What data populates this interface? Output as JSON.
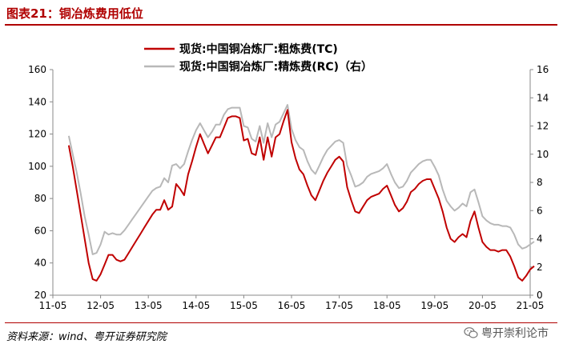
{
  "title": "图表21：铜冶炼费用低位",
  "source": "资料来源：wind、粤开证券研究院",
  "watermark": "粤开崇利论市",
  "chart_data": {
    "type": "line",
    "legend_position": "top",
    "grid": false,
    "x_ticks": [
      "11-05",
      "12-05",
      "13-05",
      "14-05",
      "15-05",
      "16-05",
      "17-05",
      "18-05",
      "19-05",
      "20-05",
      "21-05"
    ],
    "x_range": [
      "2011-05",
      "2021-05"
    ],
    "y_left": {
      "range": [
        20,
        160
      ],
      "ticks": [
        20,
        40,
        60,
        80,
        100,
        120,
        140,
        160
      ]
    },
    "y_right": {
      "range": [
        0,
        16
      ],
      "ticks": [
        0,
        2,
        4,
        6,
        8,
        10,
        12,
        14,
        16
      ]
    },
    "series": [
      {
        "name": "现货:中国铜冶炼厂:粗炼费(TC)",
        "axis": "left",
        "color": "#c00000",
        "points": [
          [
            "2011-09",
            113
          ],
          [
            "2011-10",
            100
          ],
          [
            "2011-11",
            85
          ],
          [
            "2011-12",
            70
          ],
          [
            "2012-01",
            55
          ],
          [
            "2012-02",
            40
          ],
          [
            "2012-03",
            30
          ],
          [
            "2012-04",
            29
          ],
          [
            "2012-05",
            33
          ],
          [
            "2012-06",
            39
          ],
          [
            "2012-07",
            45
          ],
          [
            "2012-08",
            45
          ],
          [
            "2012-09",
            42
          ],
          [
            "2012-10",
            41
          ],
          [
            "2012-11",
            42
          ],
          [
            "2012-12",
            46
          ],
          [
            "2013-01",
            50
          ],
          [
            "2013-02",
            54
          ],
          [
            "2013-03",
            58
          ],
          [
            "2013-04",
            62
          ],
          [
            "2013-05",
            66
          ],
          [
            "2013-06",
            70
          ],
          [
            "2013-07",
            73
          ],
          [
            "2013-08",
            73
          ],
          [
            "2013-09",
            79
          ],
          [
            "2013-10",
            73
          ],
          [
            "2013-11",
            75
          ],
          [
            "2013-12",
            89
          ],
          [
            "2014-01",
            86
          ],
          [
            "2014-02",
            82
          ],
          [
            "2014-03",
            95
          ],
          [
            "2014-04",
            103
          ],
          [
            "2014-05",
            112
          ],
          [
            "2014-06",
            120
          ],
          [
            "2014-07",
            114
          ],
          [
            "2014-08",
            108
          ],
          [
            "2014-09",
            113
          ],
          [
            "2014-10",
            118
          ],
          [
            "2014-11",
            118
          ],
          [
            "2014-12",
            124
          ],
          [
            "2015-01",
            130
          ],
          [
            "2015-02",
            131
          ],
          [
            "2015-03",
            131
          ],
          [
            "2015-04",
            130
          ],
          [
            "2015-05",
            116
          ],
          [
            "2015-06",
            117
          ],
          [
            "2015-07",
            108
          ],
          [
            "2015-08",
            107
          ],
          [
            "2015-09",
            118
          ],
          [
            "2015-10",
            104
          ],
          [
            "2015-11",
            118
          ],
          [
            "2015-12",
            106
          ],
          [
            "2016-01",
            118
          ],
          [
            "2016-02",
            120
          ],
          [
            "2016-03",
            128
          ],
          [
            "2016-04",
            135
          ],
          [
            "2016-05",
            115
          ],
          [
            "2016-06",
            105
          ],
          [
            "2016-07",
            98
          ],
          [
            "2016-08",
            95
          ],
          [
            "2016-09",
            88
          ],
          [
            "2016-10",
            82
          ],
          [
            "2016-11",
            79
          ],
          [
            "2016-12",
            85
          ],
          [
            "2017-01",
            91
          ],
          [
            "2017-02",
            96
          ],
          [
            "2017-03",
            100
          ],
          [
            "2017-04",
            104
          ],
          [
            "2017-05",
            106
          ],
          [
            "2017-06",
            103
          ],
          [
            "2017-07",
            87
          ],
          [
            "2017-08",
            79
          ],
          [
            "2017-09",
            72
          ],
          [
            "2017-10",
            71
          ],
          [
            "2017-11",
            75
          ],
          [
            "2017-12",
            79
          ],
          [
            "2018-01",
            81
          ],
          [
            "2018-02",
            82
          ],
          [
            "2018-03",
            83
          ],
          [
            "2018-04",
            86
          ],
          [
            "2018-05",
            88
          ],
          [
            "2018-06",
            82
          ],
          [
            "2018-07",
            76
          ],
          [
            "2018-08",
            72
          ],
          [
            "2018-09",
            74
          ],
          [
            "2018-10",
            78
          ],
          [
            "2018-11",
            84
          ],
          [
            "2018-12",
            86
          ],
          [
            "2019-01",
            89
          ],
          [
            "2019-02",
            91
          ],
          [
            "2019-03",
            92
          ],
          [
            "2019-04",
            92
          ],
          [
            "2019-05",
            86
          ],
          [
            "2019-06",
            80
          ],
          [
            "2019-07",
            72
          ],
          [
            "2019-08",
            62
          ],
          [
            "2019-09",
            55
          ],
          [
            "2019-10",
            53
          ],
          [
            "2019-11",
            56
          ],
          [
            "2019-12",
            58
          ],
          [
            "2020-01",
            56
          ],
          [
            "2020-02",
            66
          ],
          [
            "2020-03",
            72
          ],
          [
            "2020-04",
            62
          ],
          [
            "2020-05",
            53
          ],
          [
            "2020-06",
            50
          ],
          [
            "2020-07",
            48
          ],
          [
            "2020-08",
            48
          ],
          [
            "2020-09",
            47
          ],
          [
            "2020-10",
            48
          ],
          [
            "2020-11",
            48
          ],
          [
            "2020-12",
            44
          ],
          [
            "2021-01",
            38
          ],
          [
            "2021-02",
            31
          ],
          [
            "2021-03",
            29
          ],
          [
            "2021-04",
            32
          ],
          [
            "2021-05",
            36
          ],
          [
            "2021-06",
            38
          ]
        ]
      },
      {
        "name": "现货:中国铜冶炼厂:精炼费(RC)（右）",
        "axis": "right",
        "color": "#b8b8b8",
        "points": [
          [
            "2011-09",
            11.3
          ],
          [
            "2011-10",
            10
          ],
          [
            "2011-11",
            8.7
          ],
          [
            "2011-12",
            7.2
          ],
          [
            "2012-01",
            5.6
          ],
          [
            "2012-02",
            4.3
          ],
          [
            "2012-03",
            2.9
          ],
          [
            "2012-04",
            3.0
          ],
          [
            "2012-05",
            3.6
          ],
          [
            "2012-06",
            4.5
          ],
          [
            "2012-07",
            4.3
          ],
          [
            "2012-08",
            4.4
          ],
          [
            "2012-09",
            4.3
          ],
          [
            "2012-10",
            4.3
          ],
          [
            "2012-11",
            4.6
          ],
          [
            "2012-12",
            5.0
          ],
          [
            "2013-01",
            5.4
          ],
          [
            "2013-02",
            5.8
          ],
          [
            "2013-03",
            6.2
          ],
          [
            "2013-04",
            6.6
          ],
          [
            "2013-05",
            7.0
          ],
          [
            "2013-06",
            7.4
          ],
          [
            "2013-07",
            7.6
          ],
          [
            "2013-08",
            7.7
          ],
          [
            "2013-09",
            8.3
          ],
          [
            "2013-10",
            8.0
          ],
          [
            "2013-11",
            9.2
          ],
          [
            "2013-12",
            9.3
          ],
          [
            "2014-01",
            9.0
          ],
          [
            "2014-02",
            9.3
          ],
          [
            "2014-03",
            10.2
          ],
          [
            "2014-04",
            11.0
          ],
          [
            "2014-05",
            11.7
          ],
          [
            "2014-06",
            12.2
          ],
          [
            "2014-07",
            11.7
          ],
          [
            "2014-08",
            11.2
          ],
          [
            "2014-09",
            11.6
          ],
          [
            "2014-10",
            12.1
          ],
          [
            "2014-11",
            12.1
          ],
          [
            "2014-12",
            12.8
          ],
          [
            "2015-01",
            13.2
          ],
          [
            "2015-02",
            13.3
          ],
          [
            "2015-03",
            13.3
          ],
          [
            "2015-04",
            13.3
          ],
          [
            "2015-05",
            12.0
          ],
          [
            "2015-06",
            11.9
          ],
          [
            "2015-07",
            11.1
          ],
          [
            "2015-08",
            10.9
          ],
          [
            "2015-09",
            12.0
          ],
          [
            "2015-10",
            10.8
          ],
          [
            "2015-11",
            12.2
          ],
          [
            "2015-12",
            11.2
          ],
          [
            "2016-01",
            12.1
          ],
          [
            "2016-02",
            12.3
          ],
          [
            "2016-03",
            12.9
          ],
          [
            "2016-04",
            13.5
          ],
          [
            "2016-05",
            11.8
          ],
          [
            "2016-06",
            11.0
          ],
          [
            "2016-07",
            10.5
          ],
          [
            "2016-08",
            10.3
          ],
          [
            "2016-09",
            9.5
          ],
          [
            "2016-10",
            8.9
          ],
          [
            "2016-11",
            8.6
          ],
          [
            "2016-12",
            9.2
          ],
          [
            "2017-01",
            9.8
          ],
          [
            "2017-02",
            10.3
          ],
          [
            "2017-03",
            10.6
          ],
          [
            "2017-04",
            10.9
          ],
          [
            "2017-05",
            11.0
          ],
          [
            "2017-06",
            10.8
          ],
          [
            "2017-07",
            9.2
          ],
          [
            "2017-08",
            8.5
          ],
          [
            "2017-09",
            7.7
          ],
          [
            "2017-10",
            7.8
          ],
          [
            "2017-11",
            8.0
          ],
          [
            "2017-12",
            8.4
          ],
          [
            "2018-01",
            8.6
          ],
          [
            "2018-02",
            8.7
          ],
          [
            "2018-03",
            8.8
          ],
          [
            "2018-04",
            9.0
          ],
          [
            "2018-05",
            9.3
          ],
          [
            "2018-06",
            8.6
          ],
          [
            "2018-07",
            8.0
          ],
          [
            "2018-08",
            7.6
          ],
          [
            "2018-09",
            7.7
          ],
          [
            "2018-10",
            8.1
          ],
          [
            "2018-11",
            8.7
          ],
          [
            "2018-12",
            9.0
          ],
          [
            "2019-01",
            9.3
          ],
          [
            "2019-02",
            9.5
          ],
          [
            "2019-03",
            9.6
          ],
          [
            "2019-04",
            9.6
          ],
          [
            "2019-05",
            9.1
          ],
          [
            "2019-06",
            8.5
          ],
          [
            "2019-07",
            7.5
          ],
          [
            "2019-08",
            6.7
          ],
          [
            "2019-09",
            6.3
          ],
          [
            "2019-10",
            6.0
          ],
          [
            "2019-11",
            6.2
          ],
          [
            "2019-12",
            6.5
          ],
          [
            "2020-01",
            6.3
          ],
          [
            "2020-02",
            7.3
          ],
          [
            "2020-03",
            7.5
          ],
          [
            "2020-04",
            6.6
          ],
          [
            "2020-05",
            5.6
          ],
          [
            "2020-06",
            5.3
          ],
          [
            "2020-07",
            5.1
          ],
          [
            "2020-08",
            5.0
          ],
          [
            "2020-09",
            5.0
          ],
          [
            "2020-10",
            4.9
          ],
          [
            "2020-11",
            4.9
          ],
          [
            "2020-12",
            4.8
          ],
          [
            "2021-01",
            4.3
          ],
          [
            "2021-02",
            3.6
          ],
          [
            "2021-03",
            3.3
          ],
          [
            "2021-04",
            3.4
          ],
          [
            "2021-05",
            3.6
          ],
          [
            "2021-06",
            3.8
          ]
        ]
      }
    ]
  }
}
